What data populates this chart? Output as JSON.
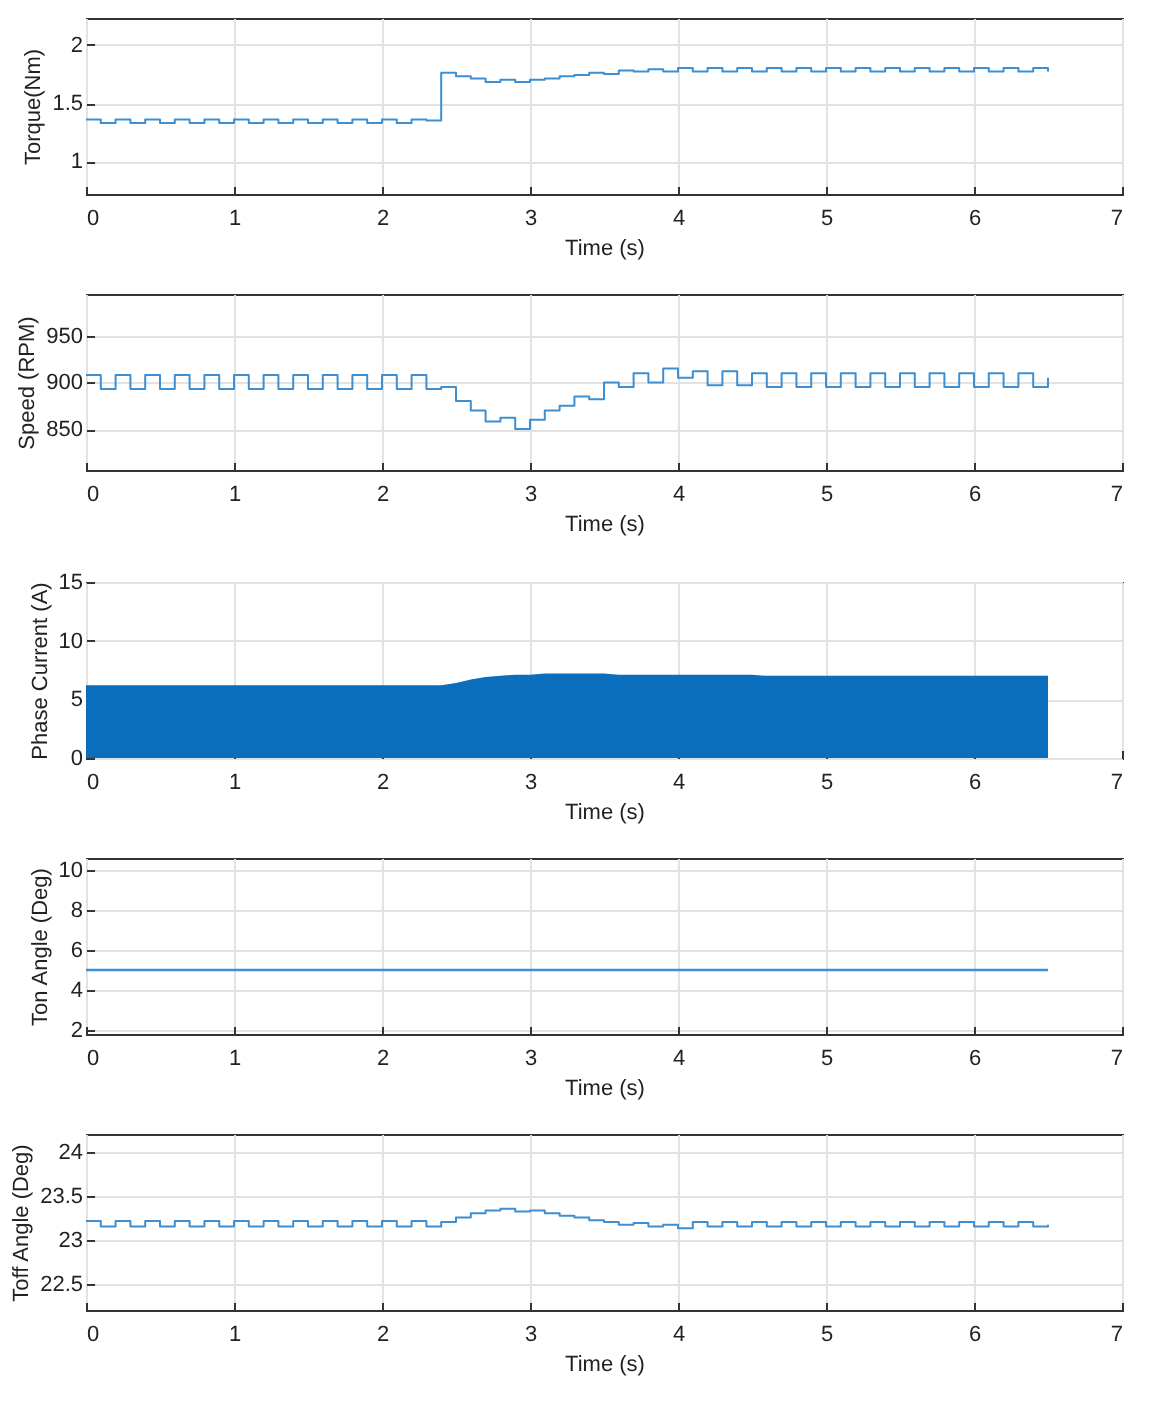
{
  "chart_data": [
    {
      "type": "step",
      "xlabel": "Time (s)",
      "ylabel": "Torque(Nm)",
      "xlim": [
        0,
        7
      ],
      "xticks": [
        0,
        1,
        2,
        3,
        4,
        5,
        6,
        7
      ],
      "ylim": [
        0.72,
        2.23
      ],
      "yticks": [
        1,
        1.5,
        2
      ],
      "grid": true,
      "x": [
        0,
        0.1,
        0.2,
        0.3,
        0.4,
        0.5,
        0.6,
        0.7,
        0.8,
        0.9,
        1,
        1.1,
        1.2,
        1.3,
        1.4,
        1.5,
        1.6,
        1.7,
        1.8,
        1.9,
        2,
        2.1,
        2.2,
        2.3,
        2.4,
        2.5,
        2.6,
        2.7,
        2.8,
        2.9,
        3,
        3.1,
        3.2,
        3.3,
        3.4,
        3.5,
        3.6,
        3.7,
        3.8,
        3.9,
        4,
        4.1,
        4.2,
        4.3,
        4.4,
        4.5,
        4.6,
        4.7,
        4.8,
        4.9,
        5,
        5.1,
        5.2,
        5.3,
        5.4,
        5.5,
        5.6,
        5.7,
        5.8,
        5.9,
        6,
        6.1,
        6.2,
        6.3,
        6.4,
        6.5
      ],
      "series": [
        {
          "color": "#3d8fd1",
          "values": [
            1.36,
            1.33,
            1.36,
            1.33,
            1.36,
            1.33,
            1.36,
            1.33,
            1.36,
            1.33,
            1.36,
            1.33,
            1.36,
            1.33,
            1.36,
            1.33,
            1.36,
            1.33,
            1.36,
            1.33,
            1.36,
            1.33,
            1.36,
            1.35,
            1.76,
            1.73,
            1.71,
            1.68,
            1.7,
            1.68,
            1.7,
            1.71,
            1.73,
            1.74,
            1.76,
            1.75,
            1.78,
            1.77,
            1.79,
            1.77,
            1.8,
            1.77,
            1.8,
            1.77,
            1.8,
            1.77,
            1.8,
            1.77,
            1.8,
            1.77,
            1.8,
            1.77,
            1.8,
            1.77,
            1.8,
            1.77,
            1.8,
            1.77,
            1.8,
            1.77,
            1.8,
            1.77,
            1.8,
            1.77,
            1.8,
            1.77
          ]
        }
      ]
    },
    {
      "type": "step",
      "xlabel": "Time (s)",
      "ylabel": "Speed (RPM)",
      "xlim": [
        0,
        7
      ],
      "xticks": [
        0,
        1,
        2,
        3,
        4,
        5,
        6,
        7
      ],
      "ylim": [
        806,
        995
      ],
      "yticks": [
        850,
        900,
        950
      ],
      "grid": true,
      "x": [
        0,
        0.1,
        0.2,
        0.3,
        0.4,
        0.5,
        0.6,
        0.7,
        0.8,
        0.9,
        1,
        1.1,
        1.2,
        1.3,
        1.4,
        1.5,
        1.6,
        1.7,
        1.8,
        1.9,
        2,
        2.1,
        2.2,
        2.3,
        2.4,
        2.5,
        2.6,
        2.7,
        2.8,
        2.9,
        3,
        3.1,
        3.2,
        3.3,
        3.4,
        3.5,
        3.6,
        3.7,
        3.8,
        3.9,
        4,
        4.1,
        4.2,
        4.3,
        4.4,
        4.5,
        4.6,
        4.7,
        4.8,
        4.9,
        5,
        5.1,
        5.2,
        5.3,
        5.4,
        5.5,
        5.6,
        5.7,
        5.8,
        5.9,
        6,
        6.1,
        6.2,
        6.3,
        6.4,
        6.5
      ],
      "series": [
        {
          "color": "#3d8fd1",
          "values": [
            908,
            893,
            908,
            893,
            908,
            893,
            908,
            893,
            908,
            893,
            908,
            893,
            908,
            893,
            908,
            893,
            908,
            893,
            908,
            893,
            908,
            893,
            908,
            893,
            895,
            880,
            870,
            858,
            862,
            850,
            860,
            870,
            875,
            885,
            882,
            900,
            895,
            910,
            900,
            915,
            905,
            912,
            897,
            912,
            897,
            910,
            895,
            910,
            895,
            910,
            895,
            910,
            895,
            910,
            895,
            910,
            895,
            910,
            895,
            910,
            895,
            910,
            895,
            910,
            895,
            905
          ]
        }
      ]
    },
    {
      "type": "area",
      "xlabel": "Time (s)",
      "ylabel": "Phase Current (A)",
      "xlim": [
        0,
        7
      ],
      "xticks": [
        0,
        1,
        2,
        3,
        4,
        5,
        6,
        7
      ],
      "ylim": [
        0,
        15
      ],
      "yticks": [
        0,
        5,
        10,
        15
      ],
      "grid": true,
      "x": [
        0,
        0.1,
        0.2,
        0.3,
        0.4,
        0.5,
        0.6,
        0.7,
        0.8,
        0.9,
        1,
        1.1,
        1.2,
        1.3,
        1.4,
        1.5,
        1.6,
        1.7,
        1.8,
        1.9,
        2,
        2.1,
        2.2,
        2.3,
        2.4,
        2.5,
        2.6,
        2.7,
        2.8,
        2.9,
        3,
        3.1,
        3.2,
        3.3,
        3.4,
        3.5,
        3.6,
        3.7,
        3.8,
        3.9,
        4,
        4.1,
        4.2,
        4.3,
        4.4,
        4.5,
        4.6,
        4.7,
        4.8,
        4.9,
        5,
        5.1,
        5.2,
        5.3,
        5.4,
        5.5,
        5.6,
        5.7,
        5.8,
        5.9,
        6,
        6.1,
        6.2,
        6.3,
        6.4,
        6.5
      ],
      "series": [
        {
          "color": "#0a6ebd",
          "values": [
            6.2,
            6.2,
            6.2,
            6.2,
            6.2,
            6.2,
            6.2,
            6.2,
            6.2,
            6.2,
            6.2,
            6.2,
            6.2,
            6.2,
            6.2,
            6.2,
            6.2,
            6.2,
            6.2,
            6.2,
            6.2,
            6.2,
            6.2,
            6.2,
            6.2,
            6.4,
            6.7,
            6.9,
            7,
            7.1,
            7.1,
            7.2,
            7.2,
            7.2,
            7.2,
            7.2,
            7.1,
            7.1,
            7.1,
            7.1,
            7.1,
            7.1,
            7.1,
            7.1,
            7.1,
            7.1,
            7,
            7,
            7,
            7,
            7,
            7,
            7,
            7,
            7,
            7,
            7,
            7,
            7,
            7,
            7,
            7,
            7,
            7,
            7,
            7
          ]
        }
      ]
    },
    {
      "type": "line",
      "xlabel": "Time (s)",
      "ylabel": "Ton Angle (Deg)",
      "xlim": [
        0,
        7
      ],
      "xticks": [
        0,
        1,
        2,
        3,
        4,
        5,
        6,
        7
      ],
      "ylim": [
        1.8,
        10.6
      ],
      "yticks": [
        2,
        4,
        6,
        8,
        10
      ],
      "grid": true,
      "x": [
        0,
        6.5
      ],
      "series": [
        {
          "color": "#3d8fd1",
          "values": [
            5,
            5
          ]
        }
      ]
    },
    {
      "type": "step",
      "xlabel": "Time (s)",
      "ylabel": "Toff Angle (Deg)",
      "xlim": [
        0,
        7
      ],
      "xticks": [
        0,
        1,
        2,
        3,
        4,
        5,
        6,
        7
      ],
      "ylim": [
        22.2,
        24.2
      ],
      "yticks": [
        22.5,
        23,
        23.5,
        24
      ],
      "grid": true,
      "x": [
        0,
        0.1,
        0.2,
        0.3,
        0.4,
        0.5,
        0.6,
        0.7,
        0.8,
        0.9,
        1,
        1.1,
        1.2,
        1.3,
        1.4,
        1.5,
        1.6,
        1.7,
        1.8,
        1.9,
        2,
        2.1,
        2.2,
        2.3,
        2.4,
        2.5,
        2.6,
        2.7,
        2.8,
        2.9,
        3,
        3.1,
        3.2,
        3.3,
        3.4,
        3.5,
        3.6,
        3.7,
        3.8,
        3.9,
        4,
        4.1,
        4.2,
        4.3,
        4.4,
        4.5,
        4.6,
        4.7,
        4.8,
        4.9,
        5,
        5.1,
        5.2,
        5.3,
        5.4,
        5.5,
        5.6,
        5.7,
        5.8,
        5.9,
        6,
        6.1,
        6.2,
        6.3,
        6.4,
        6.5
      ],
      "series": [
        {
          "color": "#3d8fd1",
          "values": [
            23.21,
            23.15,
            23.21,
            23.15,
            23.21,
            23.15,
            23.21,
            23.15,
            23.21,
            23.15,
            23.21,
            23.15,
            23.21,
            23.15,
            23.21,
            23.15,
            23.21,
            23.15,
            23.21,
            23.15,
            23.21,
            23.15,
            23.21,
            23.15,
            23.2,
            23.25,
            23.3,
            23.33,
            23.35,
            23.32,
            23.33,
            23.3,
            23.27,
            23.25,
            23.22,
            23.2,
            23.17,
            23.19,
            23.15,
            23.17,
            23.13,
            23.2,
            23.15,
            23.2,
            23.15,
            23.2,
            23.15,
            23.2,
            23.15,
            23.2,
            23.15,
            23.2,
            23.15,
            23.2,
            23.15,
            23.2,
            23.15,
            23.2,
            23.15,
            23.2,
            23.15,
            23.2,
            23.15,
            23.2,
            23.15,
            23.17
          ]
        }
      ]
    }
  ]
}
